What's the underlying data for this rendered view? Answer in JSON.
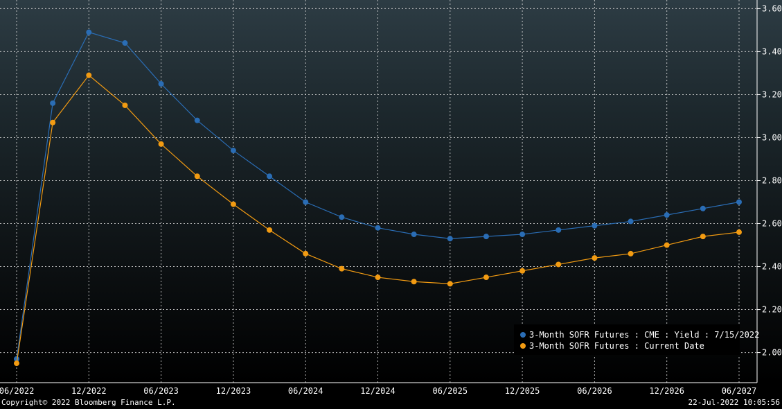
{
  "chart_data": {
    "type": "line",
    "x": [
      "2022-06",
      "2022-09",
      "2022-12",
      "2023-03",
      "2023-06",
      "2023-09",
      "2023-12",
      "2024-03",
      "2024-06",
      "2024-09",
      "2024-12",
      "2025-03",
      "2025-06",
      "2025-09",
      "2025-12",
      "2026-03",
      "2026-06",
      "2026-09",
      "2026-12",
      "2027-03",
      "2027-06"
    ],
    "series": [
      {
        "name": "3-Month SOFR Futures : CME : Yield : 7/15/2022",
        "color": "#2a6db5",
        "values": [
          1.97,
          3.16,
          3.49,
          3.44,
          3.25,
          3.08,
          2.94,
          2.82,
          2.7,
          2.63,
          2.58,
          2.55,
          2.53,
          2.54,
          2.55,
          2.57,
          2.59,
          2.61,
          2.64,
          2.67,
          2.7
        ]
      },
      {
        "name": "3-Month SOFR Futures : Current Date",
        "color": "#f29b12",
        "values": [
          1.95,
          3.07,
          3.29,
          3.15,
          2.97,
          2.82,
          2.69,
          2.57,
          2.46,
          2.39,
          2.35,
          2.33,
          2.32,
          2.35,
          2.38,
          2.41,
          2.44,
          2.46,
          2.5,
          2.54,
          2.56
        ]
      }
    ],
    "x_tick_labels": [
      "06/2022",
      "12/2022",
      "06/2023",
      "12/2023",
      "06/2024",
      "12/2024",
      "06/2025",
      "12/2025",
      "06/2026",
      "12/2026",
      "06/2027"
    ],
    "y_tick_labels": [
      "2.00",
      "2.20",
      "2.40",
      "2.60",
      "2.80",
      "3.00",
      "3.20",
      "3.40",
      "3.60"
    ],
    "ylim": [
      1.86,
      3.64
    ],
    "y_axis_side": "right",
    "grid": true,
    "legend_position": "bottom-right"
  },
  "footer": {
    "copyright": "Copyright© 2022 Bloomberg Finance L.P.",
    "timestamp": "22-Jul-2022 10:05:56"
  }
}
